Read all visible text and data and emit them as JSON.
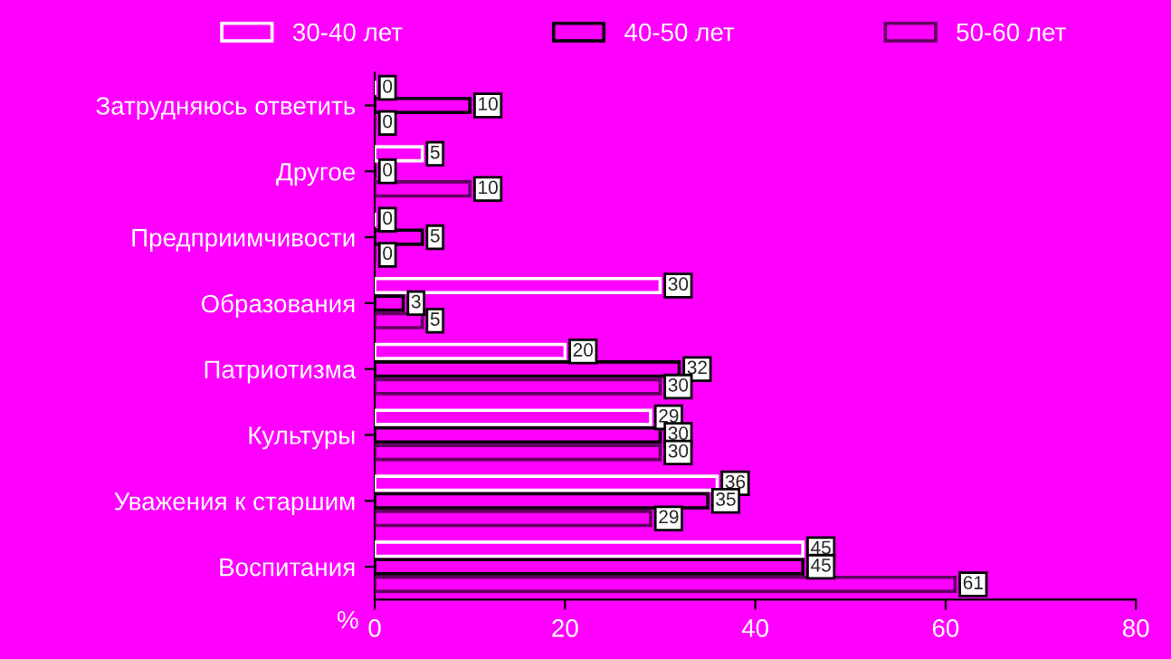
{
  "chart_data": {
    "type": "bar",
    "orientation": "horizontal",
    "xlabel": "%",
    "categories": [
      "Затрудняюсь ответить",
      "Другое",
      "Предприимчивости",
      "Образования",
      "Патриотизма",
      "Культуры",
      "Уважения к старшим",
      "Воспитания"
    ],
    "series": [
      {
        "name": "30-40 лет",
        "color": "#ffffff",
        "values": [
          0,
          5,
          0,
          30,
          20,
          29,
          36,
          45
        ]
      },
      {
        "name": "40-50 лет",
        "color": "#000000",
        "values": [
          10,
          0,
          5,
          3,
          32,
          30,
          35,
          45
        ]
      },
      {
        "name": "50-60 лет",
        "color": "#600060",
        "values": [
          0,
          10,
          0,
          5,
          30,
          30,
          29,
          61
        ]
      }
    ],
    "xlim": [
      0,
      80
    ],
    "xticks": [
      0,
      20,
      40,
      60,
      80
    ],
    "data_labels": true,
    "legend": "top",
    "grid": false
  }
}
